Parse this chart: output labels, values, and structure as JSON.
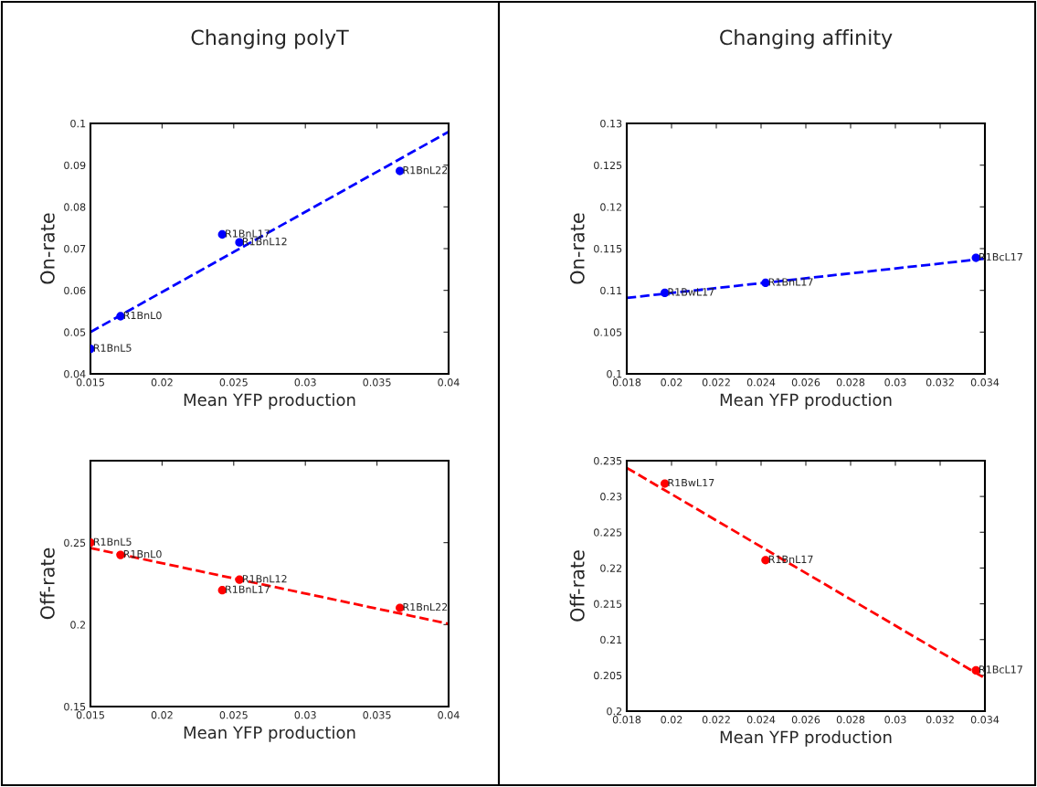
{
  "chart_data": [
    {
      "type": "scatter",
      "title": "Changing polyT",
      "xlabel": "Mean YFP production",
      "ylabel": "On-rate",
      "xlim": [
        0.015,
        0.04
      ],
      "ylim": [
        0.04,
        0.1
      ],
      "xticks": [
        0.015,
        0.02,
        0.025,
        0.03,
        0.035,
        0.04
      ],
      "yticks": [
        0.04,
        0.05,
        0.06,
        0.07,
        0.08,
        0.09,
        0.1
      ],
      "series": [
        {
          "color": "#0000ff",
          "marker": "circle",
          "x": [
            0.015,
            0.0171,
            0.0242,
            0.0254,
            0.0366
          ],
          "values": [
            0.046,
            0.0538,
            0.0734,
            0.0715,
            0.0886
          ]
        },
        {
          "type": "line",
          "color": "#0000ff",
          "line_style": "dashed",
          "marker": "none",
          "x": [
            0.015,
            0.04
          ],
          "values": [
            0.05,
            0.098
          ]
        }
      ],
      "annotations": [
        {
          "text": "R1BnL5",
          "x": 0.015,
          "y": 0.046
        },
        {
          "text": "R1BnL0",
          "x": 0.0171,
          "y": 0.0538
        },
        {
          "text": "R1BnL17",
          "x": 0.0242,
          "y": 0.0734
        },
        {
          "text": "R1BnL12",
          "x": 0.0254,
          "y": 0.0715
        },
        {
          "text": "R1BnL22",
          "x": 0.0366,
          "y": 0.0886
        }
      ]
    },
    {
      "type": "scatter",
      "title": "Changing affinity",
      "xlabel": "Mean YFP production",
      "ylabel": "On-rate",
      "xlim": [
        0.018,
        0.034
      ],
      "ylim": [
        0.1,
        0.13
      ],
      "xticks": [
        0.018,
        0.02,
        0.022,
        0.024,
        0.026,
        0.028,
        0.03,
        0.032,
        0.034
      ],
      "yticks": [
        0.1,
        0.105,
        0.11,
        0.115,
        0.12,
        0.125,
        0.13
      ],
      "series": [
        {
          "color": "#0000ff",
          "marker": "circle",
          "x": [
            0.0197,
            0.0242,
            0.0336
          ],
          "values": [
            0.1097,
            0.1109,
            0.1139
          ]
        },
        {
          "type": "line",
          "color": "#0000ff",
          "line_style": "dashed",
          "marker": "none",
          "x": [
            0.018,
            0.034
          ],
          "values": [
            0.1091,
            0.1138
          ]
        }
      ],
      "annotations": [
        {
          "text": "R1BwL17",
          "x": 0.0197,
          "y": 0.1097
        },
        {
          "text": "R1BnL17",
          "x": 0.0242,
          "y": 0.1109
        },
        {
          "text": "R1BcL17",
          "x": 0.0336,
          "y": 0.1139
        }
      ]
    },
    {
      "type": "scatter",
      "xlabel": "Mean YFP production",
      "ylabel": "Off-rate",
      "xlim": [
        0.015,
        0.04
      ],
      "ylim": [
        0.15,
        0.3
      ],
      "xticks": [
        0.015,
        0.02,
        0.025,
        0.03,
        0.035,
        0.04
      ],
      "yticks": [
        0.15,
        0.2,
        0.25
      ],
      "series": [
        {
          "color": "#ff0000",
          "marker": "circle",
          "x": [
            0.015,
            0.0171,
            0.0254,
            0.0242,
            0.0366
          ],
          "values": [
            0.25,
            0.2425,
            0.2274,
            0.221,
            0.2102
          ]
        },
        {
          "type": "line",
          "color": "#ff0000",
          "line_style": "dashed",
          "marker": "none",
          "x": [
            0.015,
            0.04
          ],
          "values": [
            0.2467,
            0.2005
          ]
        }
      ],
      "annotations": [
        {
          "text": "R1BnL5",
          "x": 0.015,
          "y": 0.25
        },
        {
          "text": "R1BnL0",
          "x": 0.0171,
          "y": 0.2425
        },
        {
          "text": "R1BnL12",
          "x": 0.0254,
          "y": 0.2274
        },
        {
          "text": "R1BnL17",
          "x": 0.0242,
          "y": 0.221
        },
        {
          "text": "R1BnL22",
          "x": 0.0366,
          "y": 0.2102
        }
      ]
    },
    {
      "type": "scatter",
      "xlabel": "Mean YFP production",
      "ylabel": "Off-rate",
      "xlim": [
        0.018,
        0.034
      ],
      "ylim": [
        0.2,
        0.235
      ],
      "xticks": [
        0.018,
        0.02,
        0.022,
        0.024,
        0.026,
        0.028,
        0.03,
        0.032,
        0.034
      ],
      "yticks": [
        0.2,
        0.205,
        0.21,
        0.215,
        0.22,
        0.225,
        0.23,
        0.235
      ],
      "series": [
        {
          "color": "#ff0000",
          "marker": "circle",
          "x": [
            0.0197,
            0.0242,
            0.0336
          ],
          "values": [
            0.2318,
            0.2211,
            0.2057
          ]
        },
        {
          "type": "line",
          "color": "#ff0000",
          "line_style": "dashed",
          "marker": "none",
          "x": [
            0.018,
            0.034
          ],
          "values": [
            0.234,
            0.2046
          ]
        }
      ],
      "annotations": [
        {
          "text": "R1BwL17",
          "x": 0.0197,
          "y": 0.2318
        },
        {
          "text": "R1BnL17",
          "x": 0.0242,
          "y": 0.2211
        },
        {
          "text": "R1BcL17",
          "x": 0.0336,
          "y": 0.2057
        }
      ]
    }
  ]
}
